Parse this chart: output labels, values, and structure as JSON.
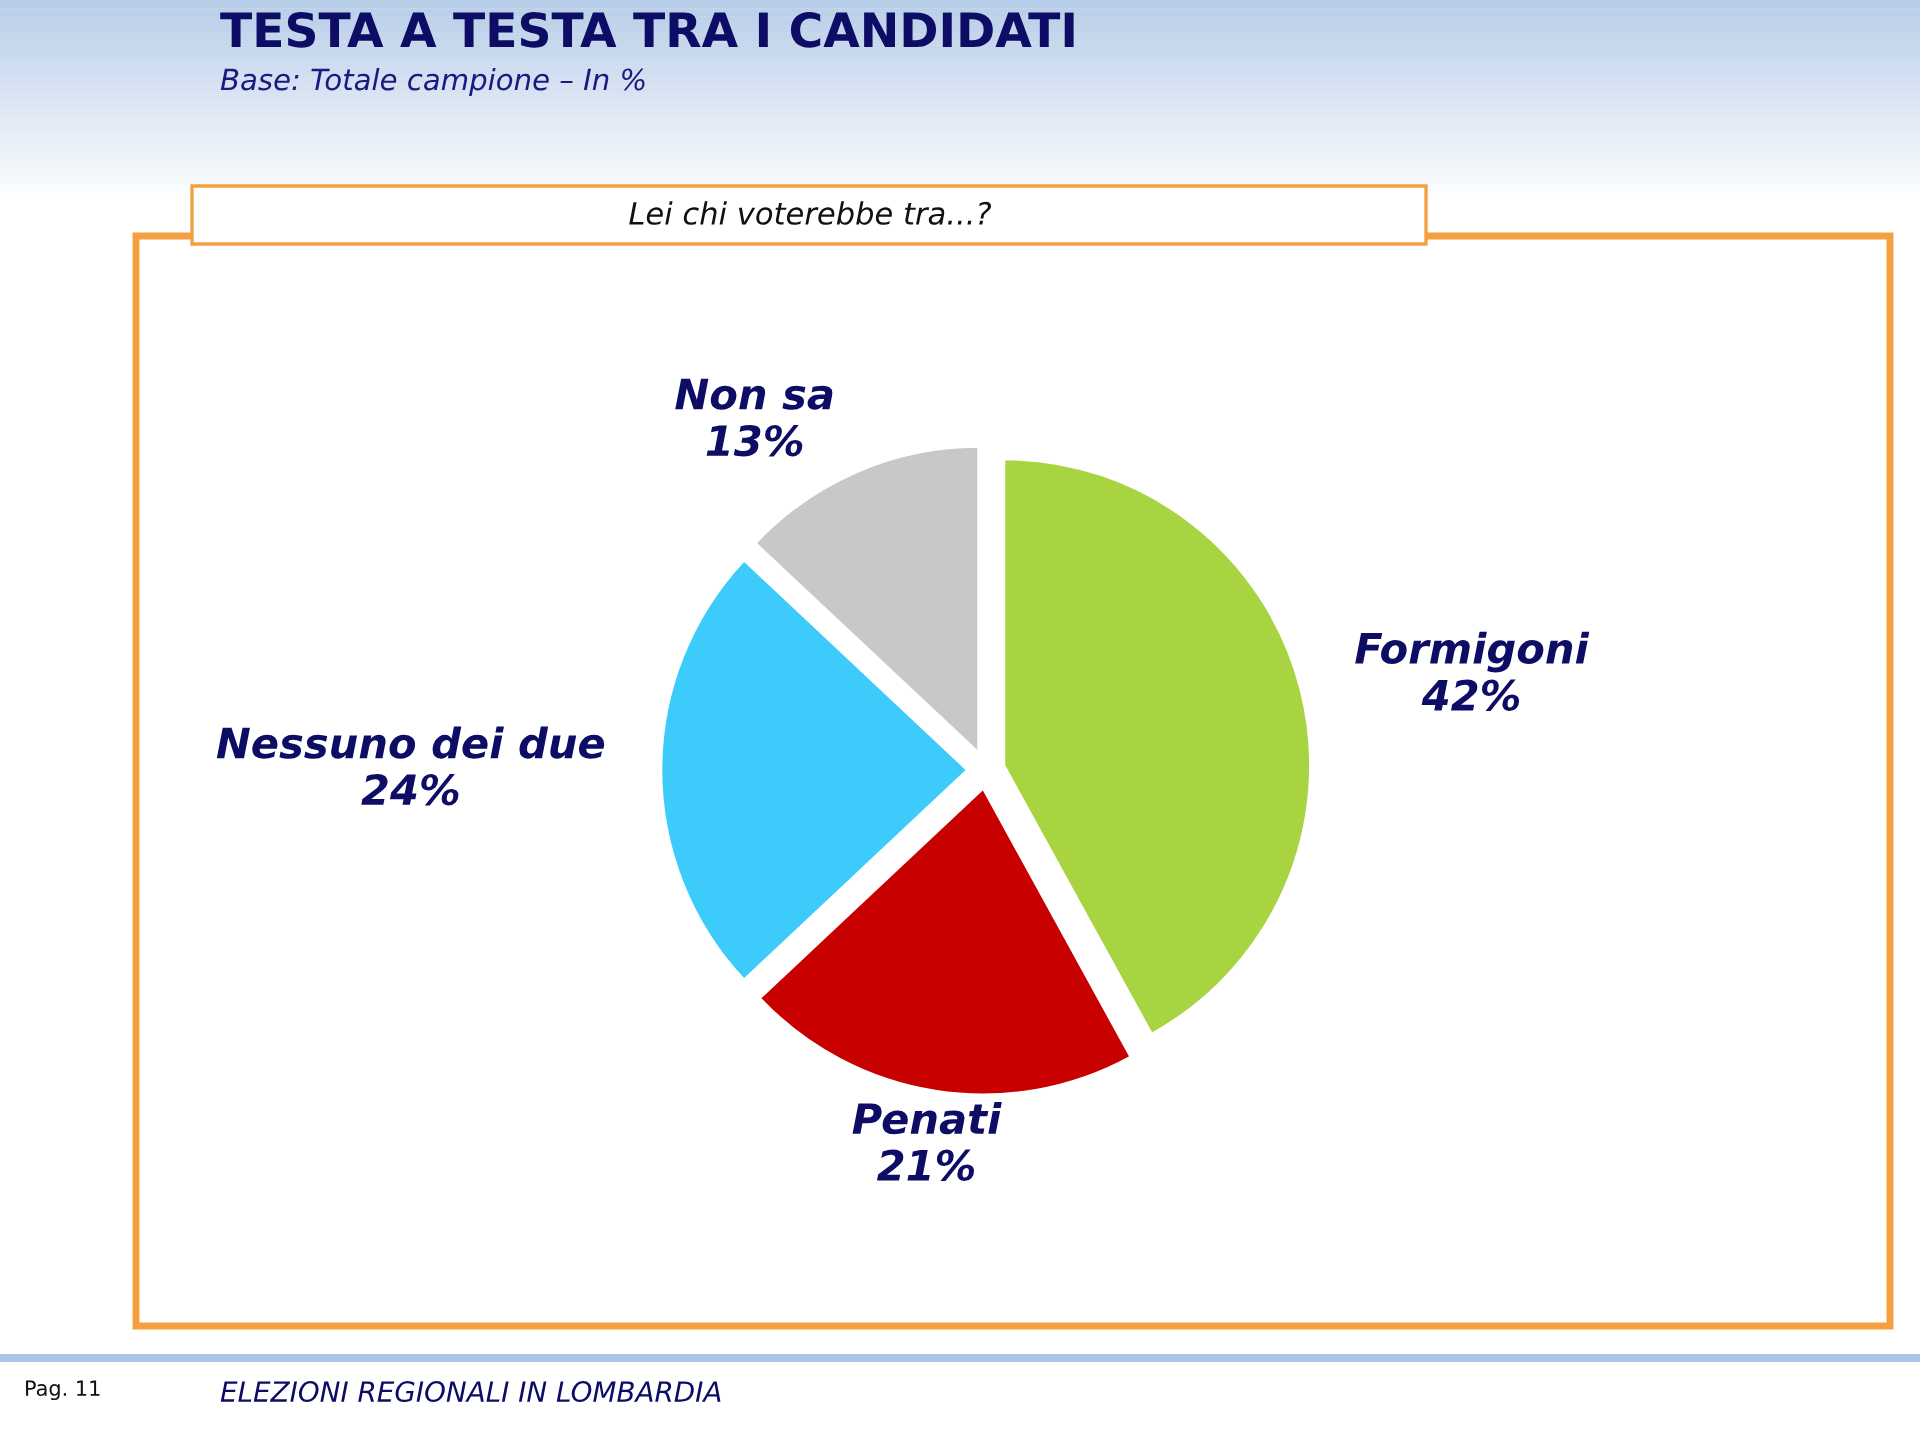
{
  "chart_data": {
    "type": "pie",
    "title": "TESTA A TESTA TRA I CANDIDATI",
    "subtitle": "Base: Totale campione – In %",
    "categories": [
      "Formigoni",
      "Penati",
      "Nessuno dei due",
      "Non sa"
    ],
    "values": [
      42,
      21,
      24,
      13
    ],
    "value_labels": [
      "42%",
      "21%",
      "24%",
      "13%"
    ],
    "colors": [
      "#a8d441",
      "#c80000",
      "#3ccbfa",
      "#c8c8c8"
    ],
    "annotations": [
      "Lei chi voterebbe tra...?",
      "Pag. 11",
      "ELEZIONI REGIONALI IN LOMBARDIA"
    ]
  }
}
